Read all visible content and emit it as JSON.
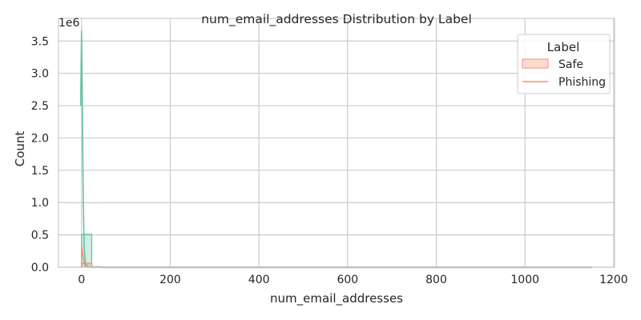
{
  "chart_data": {
    "type": "histogram",
    "title": "num_email_addresses Distribution by Label",
    "xlabel": "num_email_addresses",
    "ylabel": "Count",
    "y_offset_label": "1e6",
    "xlim": [
      -52,
      1202
    ],
    "ylim": [
      0,
      3850000
    ],
    "x_ticks": [
      0,
      200,
      400,
      600,
      800,
      1000,
      1200
    ],
    "y_ticks": [
      0,
      500000,
      1000000,
      1500000,
      2000000,
      2500000,
      3000000,
      3500000
    ],
    "x_tick_labels": [
      "0",
      "200",
      "400",
      "600",
      "800",
      "1000",
      "1200"
    ],
    "y_tick_labels": [
      "0.0",
      "0.5",
      "1.0",
      "1.5",
      "2.0",
      "2.5",
      "3.0",
      "3.5"
    ],
    "grid": true,
    "legend_position": "top-right",
    "legend_title": "Label",
    "series": [
      {
        "name": "Safe",
        "color": "#fc8d62",
        "bins": [
          {
            "x0": 0,
            "x1": 23,
            "count": 60000
          }
        ],
        "kde": [
          [
            0,
            330000
          ],
          [
            3,
            180000
          ],
          [
            6,
            60000
          ],
          [
            10,
            10000
          ],
          [
            15,
            0
          ],
          [
            1150,
            0
          ]
        ]
      },
      {
        "name": "Phishing",
        "color": "#66c2a5",
        "bins": [
          {
            "x0": 0,
            "x1": 23,
            "count": 510000
          },
          {
            "x0": 23,
            "x1": 46,
            "count": 8000
          },
          {
            "x0": 46,
            "x1": 1150,
            "count": 0
          }
        ],
        "kde": [
          [
            -2,
            2500000
          ],
          [
            0,
            3660000
          ],
          [
            2,
            2400000
          ],
          [
            4,
            1000000
          ],
          [
            6,
            300000
          ],
          [
            9,
            60000
          ],
          [
            14,
            10000
          ],
          [
            22,
            2000
          ],
          [
            40,
            0
          ],
          [
            1150,
            0
          ]
        ]
      }
    ],
    "legend_entries": [
      {
        "label": "Safe",
        "style": "patch",
        "color": "#fc8d62"
      },
      {
        "label": "Phishing",
        "style": "line",
        "color": "#fc8d62"
      }
    ]
  }
}
